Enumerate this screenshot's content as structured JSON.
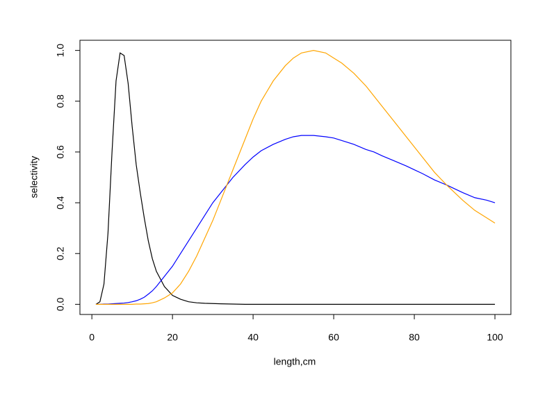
{
  "chart_data": {
    "type": "line",
    "xlabel": "length,cm",
    "ylabel": "selectivity",
    "x": [
      1,
      2,
      3,
      4,
      5,
      6,
      7,
      8,
      9,
      10,
      11,
      12,
      13,
      14,
      15,
      16,
      18,
      20,
      22,
      24,
      26,
      28,
      30,
      32,
      35,
      38,
      40,
      42,
      45,
      48,
      50,
      52,
      55,
      58,
      60,
      62,
      65,
      68,
      70,
      72,
      75,
      78,
      80,
      82,
      85,
      88,
      90,
      92,
      95,
      98,
      100
    ],
    "series": [
      {
        "color": "#000000",
        "values": [
          0,
          0.01,
          0.08,
          0.28,
          0.6,
          0.88,
          0.99,
          0.98,
          0.87,
          0.7,
          0.55,
          0.44,
          0.34,
          0.25,
          0.18,
          0.13,
          0.07,
          0.035,
          0.02,
          0.01,
          0.006,
          0.004,
          0.003,
          0.002,
          0.001,
          0,
          0,
          0,
          0,
          0,
          0,
          0,
          0,
          0,
          0,
          0,
          0,
          0,
          0,
          0,
          0,
          0,
          0,
          0,
          0,
          0,
          0,
          0,
          0,
          0,
          0
        ]
      },
      {
        "color": "#0000ff",
        "values": [
          0,
          0,
          0.001,
          0.001,
          0.002,
          0.003,
          0.004,
          0.005,
          0.007,
          0.01,
          0.014,
          0.02,
          0.028,
          0.04,
          0.053,
          0.07,
          0.11,
          0.15,
          0.2,
          0.25,
          0.3,
          0.35,
          0.4,
          0.44,
          0.5,
          0.55,
          0.58,
          0.605,
          0.63,
          0.65,
          0.66,
          0.665,
          0.665,
          0.66,
          0.655,
          0.645,
          0.63,
          0.61,
          0.6,
          0.585,
          0.565,
          0.545,
          0.53,
          0.515,
          0.49,
          0.47,
          0.455,
          0.44,
          0.42,
          0.41,
          0.4
        ]
      },
      {
        "color": "#ffa500",
        "values": [
          0,
          0,
          0,
          0,
          0,
          0,
          0,
          0,
          0,
          0,
          0.001,
          0.001,
          0.002,
          0.003,
          0.006,
          0.01,
          0.025,
          0.045,
          0.08,
          0.13,
          0.19,
          0.26,
          0.33,
          0.41,
          0.53,
          0.65,
          0.73,
          0.8,
          0.88,
          0.94,
          0.97,
          0.99,
          1.0,
          0.99,
          0.97,
          0.95,
          0.91,
          0.86,
          0.82,
          0.78,
          0.72,
          0.66,
          0.62,
          0.58,
          0.52,
          0.47,
          0.44,
          0.41,
          0.37,
          0.34,
          0.32
        ]
      }
    ],
    "xlim": [
      -2.96,
      103.96
    ],
    "xticks": [
      0,
      20,
      40,
      60,
      80,
      100
    ],
    "ylim": [
      -0.04,
      1.04
    ],
    "yticks": [
      {
        "value": 0,
        "label": "0.0"
      },
      0.2,
      0.4,
      0.6,
      0.8,
      {
        "value": 1,
        "label": "1.0"
      }
    ]
  }
}
